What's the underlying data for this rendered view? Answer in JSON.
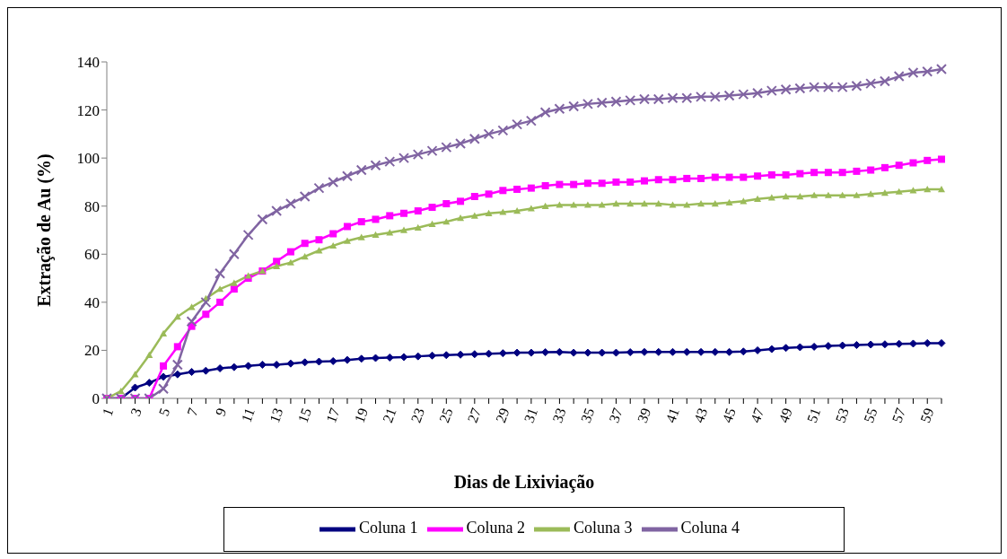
{
  "chart_data": {
    "type": "line",
    "xlabel": "Dias de Lixiviação",
    "ylabel": "Extração de Au (%)",
    "categories": [
      "1",
      null,
      "3",
      null,
      "5",
      null,
      "7",
      null,
      "9",
      null,
      "11",
      null,
      "13",
      null,
      "15",
      null,
      "17",
      null,
      "19",
      null,
      "21",
      null,
      "23",
      null,
      "25",
      null,
      "27",
      null,
      "29",
      null,
      "31",
      null,
      "33",
      null,
      "35",
      null,
      "37",
      null,
      "39",
      null,
      "41",
      null,
      "43",
      null,
      "45",
      null,
      "47",
      null,
      "49",
      null,
      "51",
      null,
      "53",
      null,
      "55",
      null,
      "57",
      null,
      "59",
      null
    ],
    "series": [
      {
        "name": "Coluna 1",
        "color": "#000080",
        "marker": "diamond",
        "values": [
          0,
          0,
          4.5,
          6.5,
          9,
          10,
          11,
          11.5,
          12.5,
          13,
          13.5,
          14,
          14,
          14.5,
          15,
          15.3,
          15.5,
          16,
          16.5,
          16.8,
          17,
          17.2,
          17.5,
          17.8,
          18,
          18.2,
          18.4,
          18.6,
          18.8,
          19,
          19,
          19.2,
          19.3,
          19,
          19,
          19,
          19,
          19.2,
          19.3,
          19.3,
          19.3,
          19.3,
          19.3,
          19.3,
          19.3,
          19.5,
          20,
          20.5,
          21,
          21.3,
          21.5,
          21.8,
          22,
          22.2,
          22.4,
          22.5,
          22.7,
          22.8,
          23,
          23
        ]
      },
      {
        "name": "Coluna 2",
        "color": "#ff00ff",
        "marker": "square",
        "values": [
          0,
          0,
          0,
          0,
          13.5,
          21.5,
          30,
          35,
          40,
          45.5,
          50,
          53,
          57,
          61,
          64.5,
          66,
          68.5,
          71.5,
          73.5,
          74.5,
          76,
          77,
          78,
          79.5,
          81,
          82,
          84,
          85,
          86.5,
          87,
          87.5,
          88.5,
          89,
          89,
          89.5,
          89.5,
          90,
          90,
          90.5,
          91,
          91,
          91.5,
          91.5,
          92,
          92,
          92,
          92.5,
          93,
          93,
          93.5,
          94,
          94,
          94,
          94.5,
          95,
          96,
          97,
          98,
          99,
          99.5
        ]
      },
      {
        "name": "Coluna 3",
        "color": "#9bbb59",
        "marker": "triangle",
        "values": [
          0,
          3,
          10,
          18,
          27,
          34,
          38,
          41.5,
          45.5,
          48,
          51,
          53,
          55,
          56.5,
          59,
          61.5,
          63.5,
          65.5,
          67,
          68,
          69,
          70,
          71,
          72.5,
          73.5,
          75,
          76,
          77,
          77.5,
          78,
          79,
          80,
          80.5,
          80.5,
          80.5,
          80.5,
          81,
          81,
          81,
          81,
          80.5,
          80.5,
          81,
          81,
          81.5,
          82,
          83,
          83.5,
          84,
          84,
          84.5,
          84.5,
          84.5,
          84.5,
          85,
          85.5,
          86,
          86.5,
          87,
          87
        ]
      },
      {
        "name": "Coluna 4",
        "color": "#8064a2",
        "marker": "cross",
        "values": [
          0,
          0,
          0,
          0,
          4,
          14,
          32,
          40,
          52,
          60,
          68,
          74.5,
          78,
          81,
          84,
          87.5,
          90,
          92.5,
          95,
          97,
          98.5,
          100,
          101.5,
          103,
          104.5,
          106,
          108,
          110,
          111.5,
          114,
          115.5,
          119,
          120.5,
          121.5,
          122.5,
          123,
          123.5,
          124,
          124.5,
          124.5,
          125,
          125,
          125.5,
          125.5,
          126,
          126.5,
          127,
          128,
          128.5,
          129,
          129.5,
          129.5,
          129.5,
          130,
          131,
          132,
          134,
          135.5,
          136,
          137
        ]
      }
    ],
    "ylim": [
      0,
      140
    ],
    "yticks": [
      0,
      20,
      40,
      60,
      80,
      100,
      120,
      140
    ],
    "grid": false,
    "legend": "bottom"
  }
}
